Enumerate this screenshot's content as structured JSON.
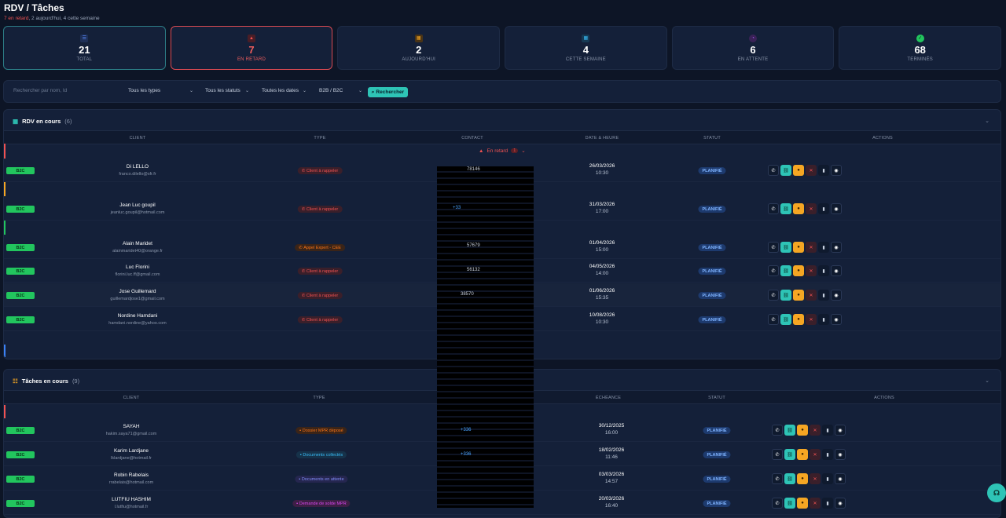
{
  "header": {
    "title": "RDV / Tâches",
    "late_text": "7 en retard",
    "rest_text": ", 2 aujourd'hui, 4 cette semaine"
  },
  "stats": [
    {
      "value": "21",
      "label": "TOTAL",
      "icon": "list-icon",
      "color": "#5b8cff"
    },
    {
      "value": "7",
      "label": "EN RETARD",
      "icon": "warning-icon",
      "color": "#f05252"
    },
    {
      "value": "2",
      "label": "AUJOURD'HUI",
      "icon": "calendar-today-icon",
      "color": "#f5a623"
    },
    {
      "value": "4",
      "label": "CETTE SEMAINE",
      "icon": "calendar-week-icon",
      "color": "#38bdf8"
    },
    {
      "value": "6",
      "label": "EN ATTENTE",
      "icon": "clock-icon",
      "color": "#a855f7"
    },
    {
      "value": "68",
      "label": "TERMINÉS",
      "icon": "check-icon",
      "color": "#22c55e"
    }
  ],
  "filters": {
    "search_placeholder": "Rechercher par nom, Id",
    "types": "Tous les types",
    "statuts": "Tous les statuts",
    "dates": "Toutes les dates",
    "segment": "B2B / B2C",
    "search_button": "Rechercher"
  },
  "rdv": {
    "title": "RDV en cours",
    "count": "(6)",
    "columns": [
      "CLIENT",
      "TYPE",
      "CONTACT",
      "DATE & HEURE",
      "STATUT",
      "ACTIONS"
    ],
    "group_label": "En retard",
    "group_count": "1",
    "rows": [
      {
        "badge": "B2C",
        "name": "Di LELLO",
        "email": "franco.dilello@sfr.fr",
        "type": "Client à rappeler",
        "contact": "78146",
        "date": "26/03/2026",
        "time": "10:30",
        "status": "PLANIFIÉ"
      },
      {
        "badge": "B2C",
        "name": "Jean Luc goupil",
        "email": "jeanluc.goupil@hotmail.com",
        "type": "Client à rappeler",
        "contact": "+33",
        "date": "31/03/2026",
        "time": "17:00",
        "status": "PLANIFIÉ"
      },
      {
        "badge": "B2C",
        "name": "Alain Maridet",
        "email": "alainmaridet40@orange.fr",
        "type": "Appel Expert - CEE",
        "contact": "57679",
        "date": "01/04/2026",
        "time": "15:00",
        "status": "PLANIFIÉ"
      },
      {
        "badge": "B2C",
        "name": "Luc Florini",
        "email": "florini.luc.ff@gmail.com",
        "type": "Client à rappeler",
        "contact": "56132",
        "date": "04/05/2026",
        "time": "14:00",
        "status": "PLANIFIÉ"
      },
      {
        "badge": "B2C",
        "name": "Jose Guillemard",
        "email": "guillemardjose1@gmail.com",
        "type": "Client à rappeler",
        "contact": "38570",
        "date": "01/06/2026",
        "time": "15:35",
        "status": "PLANIFIÉ"
      },
      {
        "badge": "B2C",
        "name": "Nordine Hamdani",
        "email": "hamdani.nordine@yahoo.com",
        "type": "Client à rappeler",
        "contact": "",
        "date": "10/08/2026",
        "time": "10:30",
        "status": "PLANIFIÉ"
      }
    ]
  },
  "taches": {
    "title": "Tâches en cours",
    "count": "(9)",
    "columns": [
      "CLIENT",
      "TYPE",
      "ÉCHÉANCE",
      "STATUT",
      "ACTIONS"
    ],
    "rows": [
      {
        "badge": "B2C",
        "name": "SAYAH",
        "email": "hakim.saya71@gmail.com",
        "type": "Dossier MPR déposé",
        "type_color": "#f97316",
        "contact": "+336",
        "date": "30/12/2025",
        "time": "16:00",
        "status": "PLANIFIÉ"
      },
      {
        "badge": "B2C",
        "name": "Karim Lardjane",
        "email": "lklardjane@hotmail.fr",
        "type": "Documents collectés",
        "type_color": "#38bdf8",
        "contact": "+336",
        "date": "18/02/2026",
        "time": "11:46",
        "status": "PLANIFIÉ"
      },
      {
        "badge": "B2C",
        "name": "Robin Rabelais",
        "email": "rrabelais@hotmail.com",
        "type": "Documents en attente",
        "type_color": "#818cf8",
        "contact": "",
        "date": "03/03/2026",
        "time": "14:57",
        "status": "PLANIFIÉ"
      },
      {
        "badge": "B2C",
        "name": "LUTFIU HASHIM",
        "email": "l.lutfiu@hotmail.fr",
        "type": "Demande de solde MPR",
        "type_color": "#d946ef",
        "contact": "",
        "date": "20/03/2026",
        "time": "16:40",
        "status": "PLANIFIÉ"
      }
    ]
  }
}
